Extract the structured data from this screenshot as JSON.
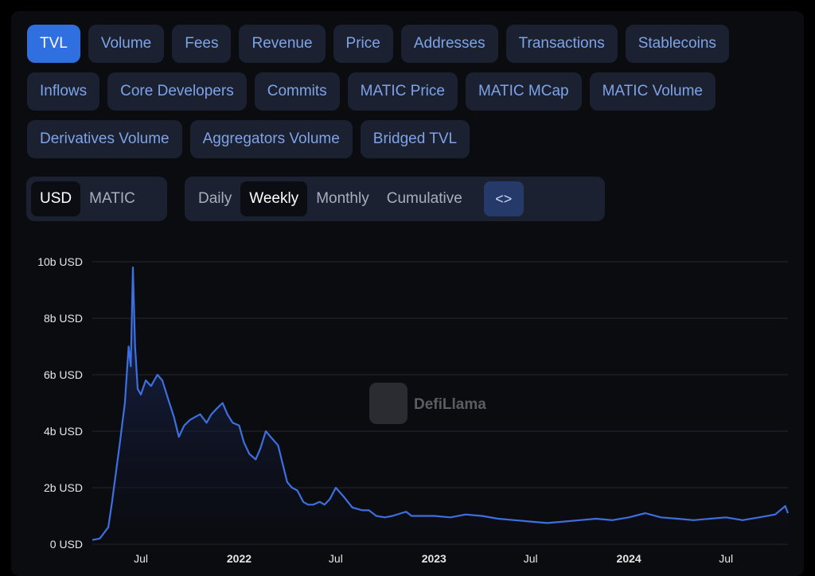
{
  "metric_tabs_row1": [
    "TVL",
    "Volume",
    "Fees",
    "Revenue",
    "Price",
    "Addresses",
    "Transactions",
    "Stablecoins"
  ],
  "metric_tabs_row2": [
    "Inflows",
    "Core Developers",
    "Commits",
    "MATIC Price",
    "MATIC MCap",
    "MATIC Volume"
  ],
  "metric_tabs_row3": [
    "Derivatives Volume",
    "Aggregators Volume",
    "Bridged TVL"
  ],
  "active_metric": "TVL",
  "currency": {
    "options": [
      "USD",
      "MATIC"
    ],
    "selected": "USD"
  },
  "period": {
    "options": [
      "Daily",
      "Weekly",
      "Monthly",
      "Cumulative"
    ],
    "selected": "Weekly"
  },
  "embed_button": {
    "label": "<>"
  },
  "watermark": {
    "text": "DefiLlama"
  },
  "colors": {
    "accent": "#2f6fe0",
    "line": "#3d6fe0",
    "tab_text": "#7ea3e6",
    "tab_bg": "#1b2130"
  },
  "chart_data": {
    "type": "area",
    "series": [
      {
        "x": [
          "2021-04-01",
          "2021-04-15",
          "2021-05-01",
          "2021-05-08",
          "2021-05-15",
          "2021-05-22",
          "2021-06-01",
          "2021-06-08",
          "2021-06-12",
          "2021-06-16",
          "2021-06-20",
          "2021-06-25",
          "2021-07-01",
          "2021-07-10",
          "2021-07-20",
          "2021-08-01",
          "2021-08-10",
          "2021-08-20",
          "2021-09-01",
          "2021-09-10",
          "2021-09-20",
          "2021-10-01",
          "2021-10-10",
          "2021-10-20",
          "2021-11-01",
          "2021-11-10",
          "2021-11-20",
          "2021-12-01",
          "2021-12-10",
          "2021-12-20",
          "2022-01-01",
          "2022-01-10",
          "2022-01-20",
          "2022-02-01",
          "2022-02-10",
          "2022-02-20",
          "2022-03-01",
          "2022-03-15",
          "2022-04-01",
          "2022-04-10",
          "2022-04-20",
          "2022-05-01",
          "2022-05-10",
          "2022-05-20",
          "2022-06-01",
          "2022-06-10",
          "2022-06-20",
          "2022-07-01",
          "2022-07-15",
          "2022-08-01",
          "2022-08-10",
          "2022-08-20",
          "2022-09-01",
          "2022-09-15",
          "2022-10-01",
          "2022-10-15",
          "2022-11-01",
          "2022-11-10",
          "2022-11-20",
          "2022-12-01",
          "2023-01-01",
          "2023-02-01",
          "2023-03-01",
          "2023-04-01",
          "2023-05-01",
          "2023-06-01",
          "2023-07-01",
          "2023-08-01",
          "2023-09-01",
          "2023-10-01",
          "2023-11-01",
          "2023-12-01",
          "2024-01-01",
          "2024-02-01",
          "2024-03-01",
          "2024-04-01",
          "2024-05-01",
          "2024-06-01",
          "2024-07-01",
          "2024-08-01",
          "2024-09-01",
          "2024-10-01",
          "2024-10-20",
          "2024-10-25"
        ],
        "y": [
          0.15,
          0.2,
          0.6,
          1.5,
          2.5,
          3.5,
          5.0,
          7.0,
          6.3,
          9.8,
          7.0,
          5.5,
          5.3,
          5.8,
          5.6,
          6.0,
          5.8,
          5.2,
          4.5,
          3.8,
          4.2,
          4.4,
          4.5,
          4.6,
          4.3,
          4.6,
          4.8,
          5.0,
          4.6,
          4.3,
          4.2,
          3.6,
          3.2,
          3.0,
          3.4,
          4.0,
          3.8,
          3.5,
          2.2,
          2.0,
          1.9,
          1.5,
          1.4,
          1.4,
          1.5,
          1.4,
          1.6,
          2.0,
          1.7,
          1.3,
          1.25,
          1.2,
          1.2,
          1.0,
          0.95,
          1.0,
          1.1,
          1.15,
          1.0,
          1.0,
          1.0,
          0.95,
          1.05,
          1.0,
          0.9,
          0.85,
          0.8,
          0.75,
          0.8,
          0.85,
          0.9,
          0.85,
          0.95,
          1.1,
          0.95,
          0.9,
          0.85,
          0.9,
          0.95,
          0.85,
          0.95,
          1.05,
          1.35,
          1.1
        ]
      }
    ],
    "ylim": [
      0,
      10
    ],
    "y_ticks": [
      0,
      2,
      4,
      6,
      8,
      10
    ],
    "y_tick_labels": [
      "0 USD",
      "2b USD",
      "4b USD",
      "6b USD",
      "8b USD",
      "10b USD"
    ],
    "x_ticks": [
      {
        "date": "2021-07-01",
        "label": "Jul",
        "bold": false
      },
      {
        "date": "2022-01-01",
        "label": "2022",
        "bold": true
      },
      {
        "date": "2022-07-01",
        "label": "Jul",
        "bold": false
      },
      {
        "date": "2023-01-01",
        "label": "2023",
        "bold": true
      },
      {
        "date": "2023-07-01",
        "label": "Jul",
        "bold": false
      },
      {
        "date": "2024-01-01",
        "label": "2024",
        "bold": true
      },
      {
        "date": "2024-07-01",
        "label": "Jul",
        "bold": false
      }
    ],
    "x_range": [
      "2021-04-01",
      "2024-10-25"
    ],
    "grid": true,
    "legend": "none"
  }
}
